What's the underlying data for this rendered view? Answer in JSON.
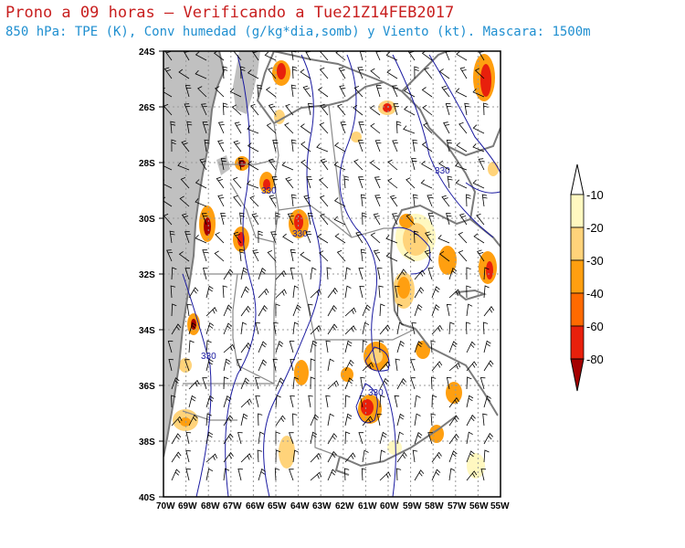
{
  "title": {
    "line1": "Prono a 09 horas — Verificando a Tue21Z14FEB2017",
    "line2": "850 hPa: TPE (K), Conv humedad (g/kg*dia,somb) y Viento (kt). Mascara: 1500m"
  },
  "map": {
    "lat_labels": [
      "24S",
      "26S",
      "28S",
      "30S",
      "32S",
      "34S",
      "36S",
      "38S",
      "40S"
    ],
    "lon_labels": [
      "70W",
      "69W",
      "68W",
      "67W",
      "66W",
      "65W",
      "64W",
      "63W",
      "62W",
      "61W",
      "60W",
      "59W",
      "58W",
      "57W",
      "56W",
      "55W"
    ],
    "contour_labels": [
      "330",
      "330",
      "330",
      "330",
      "330"
    ],
    "colors": {
      "mask": "#c0c0c0",
      "contour": "#1a1aa0",
      "borders": "#7a7a7a",
      "wind": "#000000"
    }
  },
  "colorbar": {
    "levels": [
      "-10",
      "-20",
      "-30",
      "-40",
      "-60",
      "-80"
    ],
    "colors": [
      "#fff8c0",
      "#ffd37a",
      "#ff9f10",
      "#ff6a00",
      "#e8200c",
      "#a50000"
    ]
  }
}
